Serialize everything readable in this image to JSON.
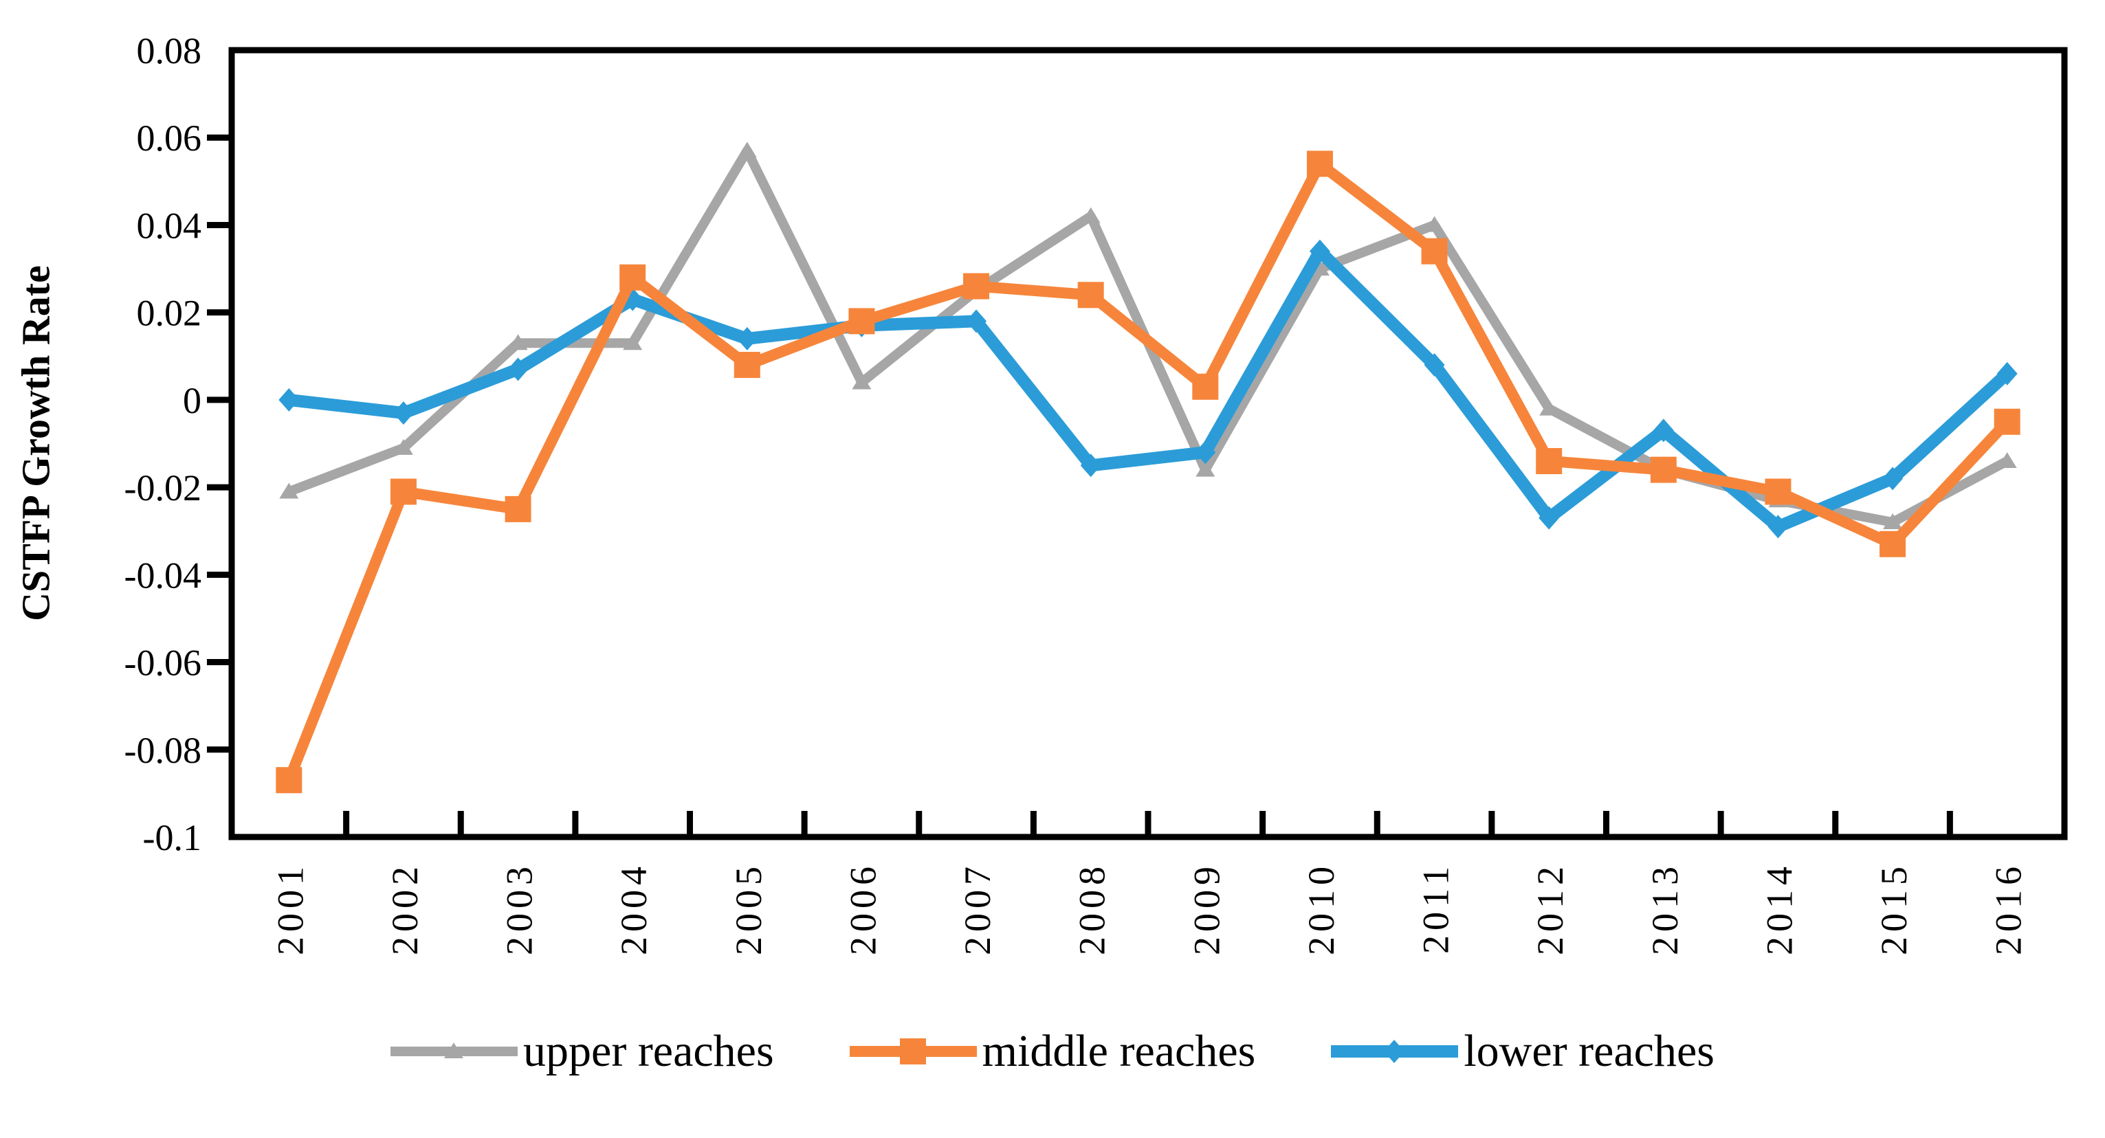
{
  "chart_data": {
    "type": "line",
    "title": "",
    "xlabel": "",
    "ylabel": "CSTFP Growth Rate",
    "grid": "off",
    "legend_position": "bottom",
    "ylim": [
      -0.1,
      0.08
    ],
    "ytick_step": 0.02,
    "ytick_values": [
      0.08,
      0.06,
      0.04,
      0.02,
      0,
      -0.02,
      -0.04,
      -0.06,
      -0.08,
      -0.1
    ],
    "ytick_labels": [
      "0.08",
      "0.06",
      "0.04",
      "0.02",
      "0",
      "-0.02",
      "-0.04",
      "-0.06",
      "-0.08",
      "-0.1"
    ],
    "categories": [
      "2001",
      "2002",
      "2003",
      "2004",
      "2005",
      "2006",
      "2007",
      "2008",
      "2009",
      "2010",
      "2011",
      "2012",
      "2013",
      "2014",
      "2015",
      "2016"
    ],
    "series": [
      {
        "name": "upper reaches",
        "color": "#A6A6A6",
        "marker": "triangle",
        "values": [
          -0.021,
          -0.011,
          0.013,
          0.013,
          0.057,
          0.004,
          0.025,
          0.042,
          -0.016,
          0.03,
          0.04,
          -0.002,
          -0.016,
          -0.023,
          -0.028,
          -0.014
        ]
      },
      {
        "name": "middle reaches",
        "color": "#F6853B",
        "marker": "square",
        "values": [
          -0.087,
          -0.021,
          -0.025,
          0.028,
          0.008,
          0.018,
          0.026,
          0.024,
          0.003,
          0.054,
          0.034,
          -0.014,
          -0.016,
          -0.021,
          -0.033,
          -0.005
        ]
      },
      {
        "name": "lower reaches",
        "color": "#2B9CD8",
        "marker": "diamond",
        "values": [
          0.0,
          -0.003,
          0.007,
          0.023,
          0.014,
          0.017,
          0.018,
          -0.015,
          -0.012,
          0.034,
          0.008,
          -0.027,
          -0.007,
          -0.029,
          -0.018,
          0.006
        ]
      }
    ]
  },
  "axis_color": "#000000"
}
